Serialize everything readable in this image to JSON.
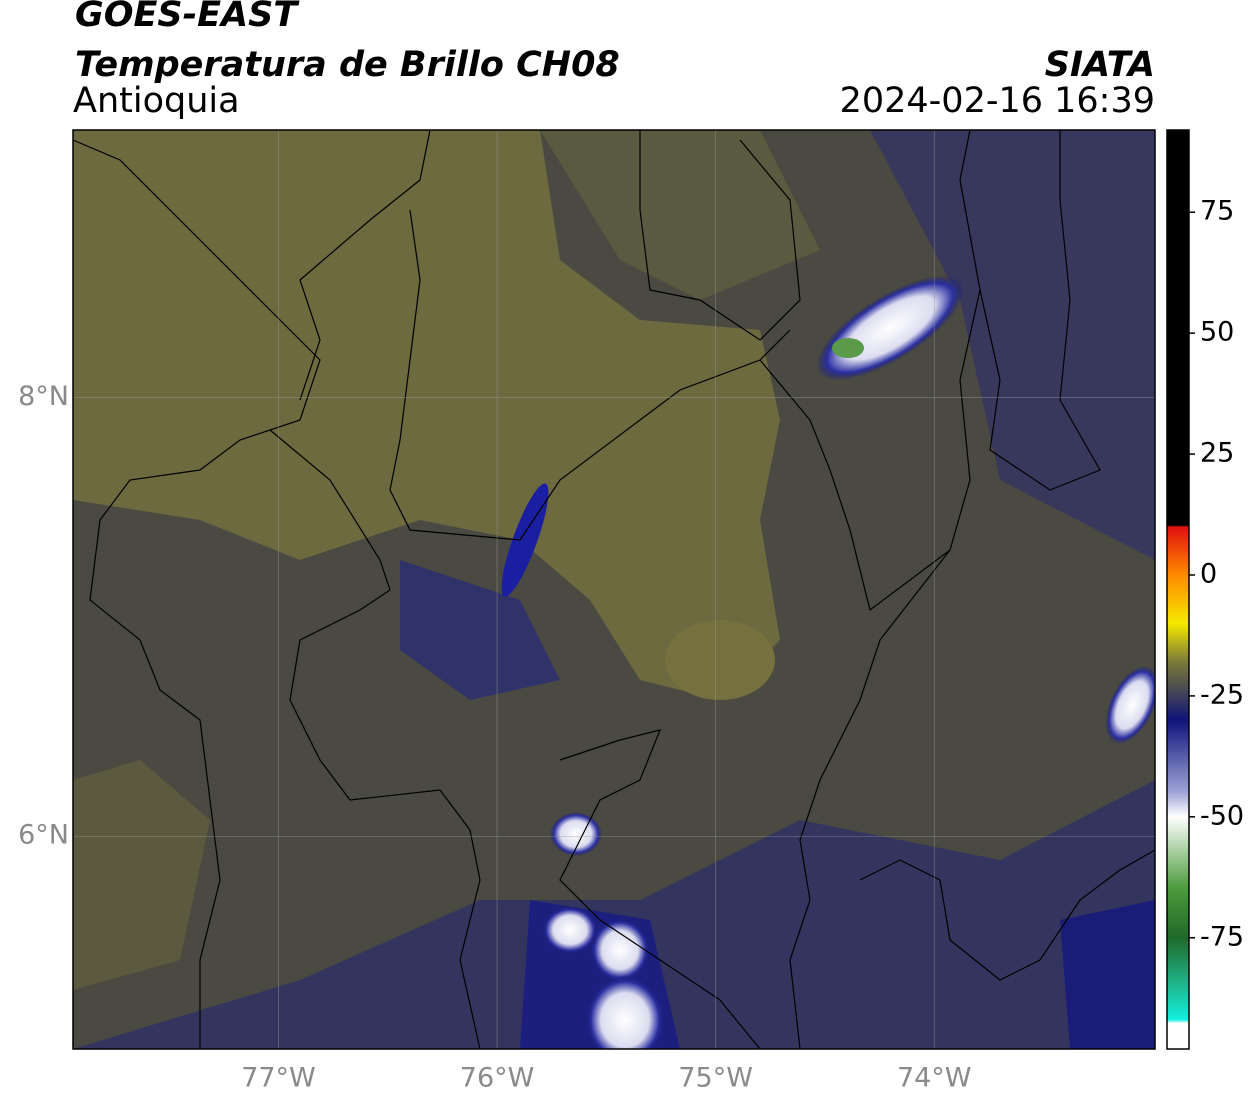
{
  "header": {
    "title": "GOES-EAST",
    "subtitle": "Temperatura de Brillo CH08",
    "region": "Antioquia",
    "organization": "SIATA",
    "datetime": "2024-02-16 16:39"
  },
  "map": {
    "xlim": [
      -77.94,
      -72.99
    ],
    "ylim": [
      5.03,
      9.22
    ],
    "xticks": [
      {
        "value": -77,
        "label": "77°W"
      },
      {
        "value": -76,
        "label": "76°W"
      },
      {
        "value": -75,
        "label": "75°W"
      },
      {
        "value": -74,
        "label": "74°W"
      }
    ],
    "yticks": [
      {
        "value": 8,
        "label": "8°N"
      },
      {
        "value": 6,
        "label": "6°N"
      }
    ],
    "grid": true
  },
  "colorbar": {
    "lim": [
      -98,
      92
    ],
    "ticks": [
      75,
      50,
      25,
      0,
      -25,
      -50,
      -75
    ]
  }
}
